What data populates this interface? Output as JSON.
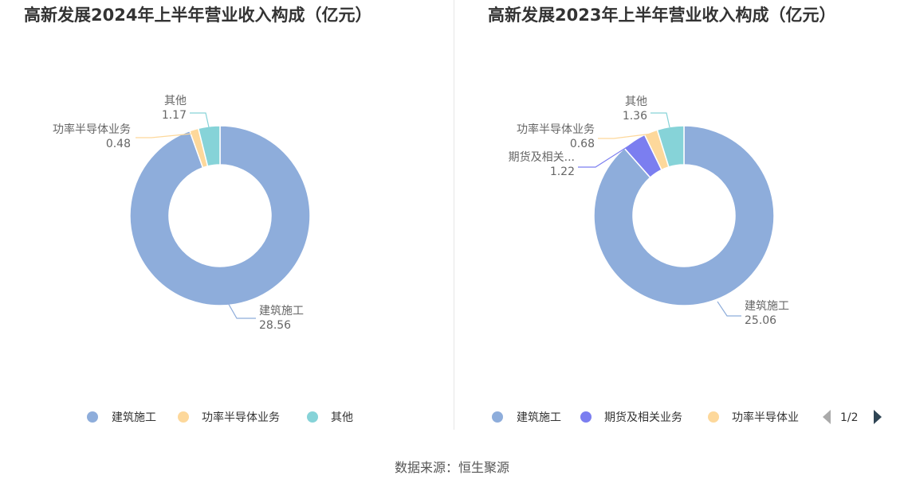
{
  "source": "数据来源：恒生聚源",
  "chart_data": [
    {
      "type": "pie",
      "donut": true,
      "title": "高新发展2024年上半年营业收入构成（亿元）",
      "categories": [
        "建筑施工",
        "功率半导体业务",
        "其他"
      ],
      "values": [
        28.56,
        0.48,
        1.17
      ],
      "colors": [
        "#8eaddb",
        "#fdd89b",
        "#86d3d8"
      ],
      "slice_labels": [
        "建筑施工",
        "功率半导体业务",
        "其他"
      ],
      "legend": {
        "items": [
          "建筑施工",
          "功率半导体业务",
          "其他"
        ],
        "position": "bottom"
      }
    },
    {
      "type": "pie",
      "donut": true,
      "title": "高新发展2023年上半年营业收入构成（亿元）",
      "categories": [
        "建筑施工",
        "期货及相关业务",
        "功率半导体业务",
        "其他"
      ],
      "values": [
        25.06,
        1.22,
        0.68,
        1.36
      ],
      "colors": [
        "#8eaddb",
        "#7b7ef0",
        "#fdd89b",
        "#86d3d8"
      ],
      "slice_labels": [
        "建筑施工",
        "期货及相关...",
        "功率半导体业务",
        "其他"
      ],
      "legend": {
        "items": [
          "建筑施工",
          "期货及相关业务",
          "功率半导体业"
        ],
        "position": "bottom",
        "page": "1/2"
      }
    }
  ]
}
